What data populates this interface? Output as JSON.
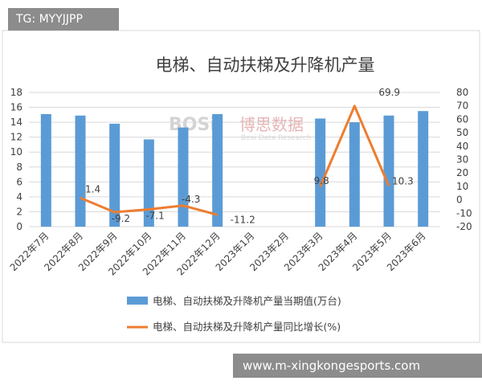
{
  "overlay": {
    "tag": "TG: MYYJJPP",
    "url": "www.m-xingkongesports.com"
  },
  "watermark": {
    "logo": "BOSi",
    "cn": "博思数据",
    "en": "Bosi Data Research"
  },
  "chart_data": {
    "type": "bar",
    "title": "电梯、自动扶梯及升降机产量",
    "categories": [
      "2022年7月",
      "2022年8月",
      "2022年9月",
      "2022年10月",
      "2022年11月",
      "2022年12月",
      "2023年1月",
      "2023年2月",
      "2023年3月",
      "2023年4月",
      "2023年5月",
      "2023年6月"
    ],
    "left_axis": {
      "min": 0,
      "max": 18,
      "step": 2
    },
    "right_axis": {
      "min": -20,
      "max": 80,
      "step": 10
    },
    "grid": true,
    "legend_position": "bottom",
    "series": [
      {
        "name": "电梯、自动扶梯及升降机产量当期值(万台)",
        "type": "bar",
        "axis": "left",
        "color": "#5b9bd5",
        "values": [
          15.1,
          14.9,
          13.8,
          11.7,
          13.3,
          15.1,
          null,
          null,
          14.5,
          14.0,
          14.9,
          15.5
        ]
      },
      {
        "name": "电梯、自动扶梯及升降机产量同比增长(%)",
        "type": "line",
        "axis": "right",
        "color": "#ed7d31",
        "values": [
          null,
          1.4,
          -9.2,
          -7.1,
          -4.3,
          -11.2,
          null,
          null,
          9.8,
          69.9,
          10.3,
          null
        ],
        "labels": [
          "",
          "1.4",
          "-9.2",
          "-7.1",
          "-4.3",
          "-11.2",
          "",
          "",
          "9.8",
          "69.9",
          "10.3",
          ""
        ]
      }
    ]
  }
}
